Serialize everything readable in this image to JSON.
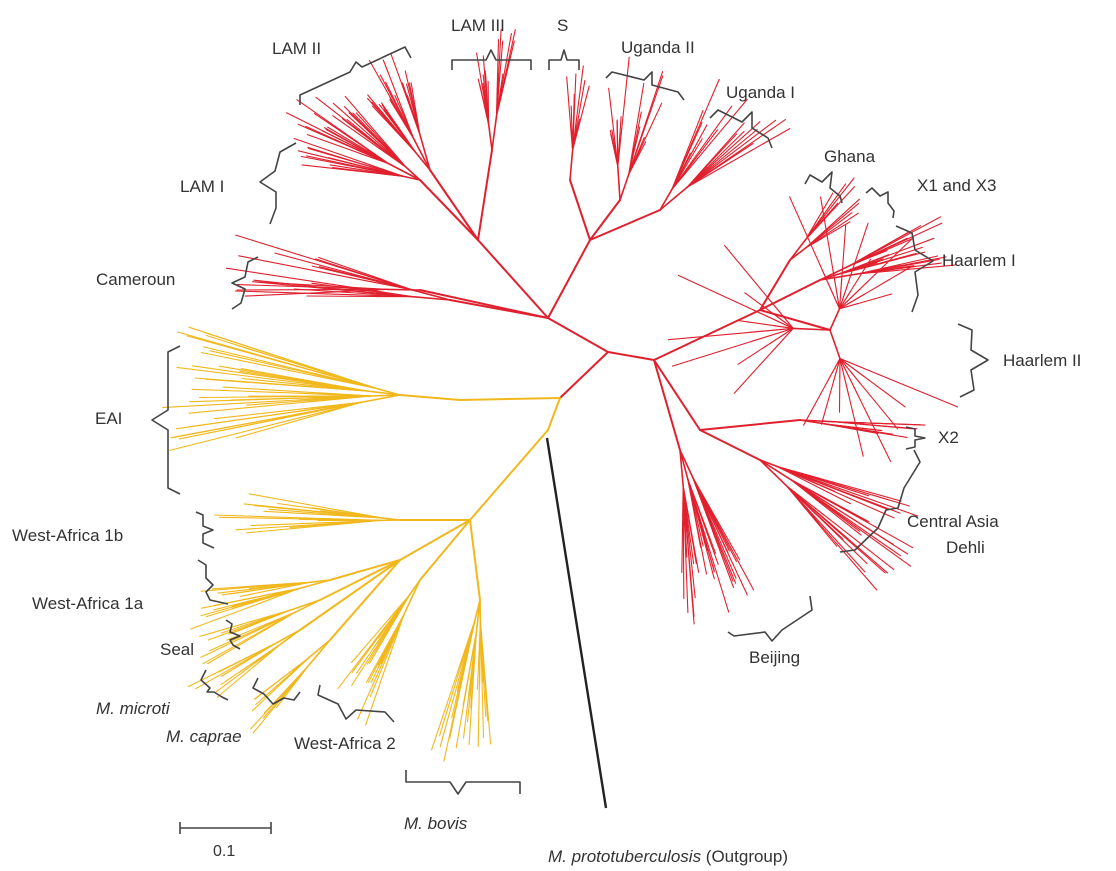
{
  "colors": {
    "clade_red": "#e0202e",
    "clade_yellow": "#f1b81d",
    "outgroup": "#222222",
    "text": "#333333"
  },
  "labels": {
    "lam2": "LAM II",
    "lam3": "LAM III",
    "s": "S",
    "uganda2": "Uganda II",
    "uganda1": "Uganda I",
    "ghana": "Ghana",
    "x1x3": "X1 and X3",
    "lam1": "LAM I",
    "cameroun": "Cameroun",
    "haarlem1": "Haarlem I",
    "haarlem2": "Haarlem II",
    "x2": "X2",
    "eai": "EAI",
    "central_asia": "Central Asia",
    "dehli": "Dehli",
    "west_africa_1b": "West-Africa 1b",
    "west_africa_1a": "West-Africa 1a",
    "seal": "Seal",
    "beijing": "Beijing",
    "m_microti": "M. microti",
    "m_caprae": "M. caprae",
    "west_africa_2": "West-Africa 2",
    "m_bovis": "M. bovis",
    "outgroup_species": "M. prototuberculosis",
    "outgroup_note": " (Outgroup)"
  },
  "scale_bar": {
    "label": "0.1",
    "value": 0.1
  }
}
